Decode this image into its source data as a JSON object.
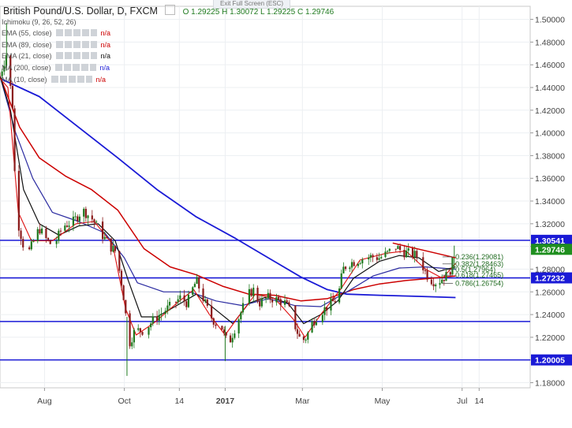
{
  "header": {
    "title": "British Pound/U.S. Dollar, D, FXCM",
    "o_label": "O",
    "o": "1.29225",
    "h_label": "H",
    "h": "1.30072",
    "l_label": "L",
    "l": "1.29225",
    "c_label": "C",
    "c": "1.29746",
    "fullscreen_label": "Exit Full Screen (ESC)"
  },
  "indicators": [
    {
      "name": "Ichimoku (9, 26, 52, 26)",
      "value": "",
      "color": "#999999"
    },
    {
      "name": "EMA (55, close)",
      "value": "n/a",
      "color": "#cc0000"
    },
    {
      "name": "EMA (89, close)",
      "value": "n/a",
      "color": "#cc0000"
    },
    {
      "name": "EMA (21, close)",
      "value": "n/a",
      "color": "#111111"
    },
    {
      "name": "MA (200, close)",
      "value": "n/a",
      "color": "#1a1ad6"
    },
    {
      "name": "MA (10, close)",
      "value": "n/a",
      "color": "#cc0000"
    }
  ],
  "chart_data": {
    "type": "candlestick",
    "yticks": [
      "1.50000",
      "1.48000",
      "1.46000",
      "1.44000",
      "1.42000",
      "1.40000",
      "1.38000",
      "1.36000",
      "1.34000",
      "1.32000",
      "1.30000",
      "1.28000",
      "1.26000",
      "1.24000",
      "1.22000",
      "1.20000",
      "1.18000"
    ],
    "ylim": [
      1.1755,
      1.5115
    ],
    "xticks": [
      {
        "label": "Aug",
        "day": 34,
        "bold": false
      },
      {
        "label": "Oct",
        "day": 95,
        "bold": false
      },
      {
        "label": "14",
        "day": 137,
        "bold": false
      },
      {
        "label": "2017",
        "day": 172,
        "bold": true
      },
      {
        "label": "Mar",
        "day": 231,
        "bold": false
      },
      {
        "label": "May",
        "day": 292,
        "bold": false
      },
      {
        "label": "Jul",
        "day": 353,
        "bold": false
      },
      {
        "label": "14",
        "day": 366,
        "bold": false
      }
    ],
    "xrange": [
      0,
      405
    ],
    "horizontal_levels": [
      {
        "value": 1.30541,
        "label": "1.30541",
        "labeled": true
      },
      {
        "value": 1.27232,
        "label": "1.27232",
        "labeled": true
      },
      {
        "value": 1.2339,
        "label": "",
        "labeled": false
      },
      {
        "value": 1.20005,
        "label": "1.20005",
        "labeled": true
      }
    ],
    "last_price": {
      "value": 1.29746,
      "label": "1.29746",
      "color": "#1f8f1f"
    },
    "fib_levels": [
      {
        "label": "0.236(1.29081)",
        "value": 1.29081
      },
      {
        "label": "0.382(1.28463)",
        "value": 1.28463
      },
      {
        "label": "0.5(1.27964)",
        "value": 1.27964
      },
      {
        "label": "0.618(1.27465)",
        "value": 1.27465
      },
      {
        "label": "0.786(1.26754)",
        "value": 1.26754
      }
    ],
    "trendline": {
      "from": {
        "day": 300,
        "price": 1.303
      },
      "to": {
        "day": 348,
        "price": 1.29
      },
      "color": "#cc0000"
    },
    "key_points": [
      [
        0,
        1.45
      ],
      [
        5,
        1.47
      ],
      [
        8,
        1.44
      ],
      [
        10,
        1.42
      ],
      [
        12,
        1.33
      ],
      [
        16,
        1.31
      ],
      [
        20,
        1.29
      ],
      [
        24,
        1.3
      ],
      [
        30,
        1.316
      ],
      [
        36,
        1.305
      ],
      [
        41,
        1.3
      ],
      [
        48,
        1.318
      ],
      [
        56,
        1.322
      ],
      [
        63,
        1.332
      ],
      [
        70,
        1.325
      ],
      [
        77,
        1.312
      ],
      [
        84,
        1.3
      ],
      [
        88,
        1.296
      ],
      [
        91,
        1.28
      ],
      [
        94,
        1.26
      ],
      [
        97,
        1.23
      ],
      [
        99,
        1.215
      ],
      [
        103,
        1.226
      ],
      [
        110,
        1.226
      ],
      [
        117,
        1.235
      ],
      [
        124,
        1.242
      ],
      [
        131,
        1.248
      ],
      [
        138,
        1.255
      ],
      [
        143,
        1.25
      ],
      [
        147,
        1.262
      ],
      [
        150,
        1.27
      ],
      [
        155,
        1.255
      ],
      [
        160,
        1.24
      ],
      [
        165,
        1.232
      ],
      [
        170,
        1.228
      ],
      [
        172,
        1.218
      ],
      [
        176,
        1.218
      ],
      [
        180,
        1.23
      ],
      [
        185,
        1.245
      ],
      [
        190,
        1.258
      ],
      [
        194,
        1.262
      ],
      [
        198,
        1.25
      ],
      [
        205,
        1.255
      ],
      [
        212,
        1.253
      ],
      [
        218,
        1.25
      ],
      [
        222,
        1.242
      ],
      [
        226,
        1.228
      ],
      [
        230,
        1.216
      ],
      [
        234,
        1.22
      ],
      [
        238,
        1.232
      ],
      [
        243,
        1.24
      ],
      [
        248,
        1.245
      ],
      [
        253,
        1.25
      ],
      [
        258,
        1.254
      ],
      [
        262,
        1.28
      ],
      [
        266,
        1.285
      ],
      [
        272,
        1.287
      ],
      [
        278,
        1.29
      ],
      [
        284,
        1.291
      ],
      [
        290,
        1.29
      ],
      [
        296,
        1.294
      ],
      [
        302,
        1.3
      ],
      [
        308,
        1.295
      ],
      [
        313,
        1.294
      ],
      [
        318,
        1.292
      ],
      [
        322,
        1.285
      ],
      [
        326,
        1.275
      ],
      [
        330,
        1.27
      ],
      [
        334,
        1.268
      ],
      [
        338,
        1.272
      ],
      [
        342,
        1.275
      ],
      [
        345,
        1.282
      ],
      [
        347,
        1.297
      ]
    ],
    "moving_averages": [
      {
        "name": "MA (200, close)",
        "color": "#1a1ad6",
        "width": 1.8,
        "points": [
          [
            0,
            1.448
          ],
          [
            30,
            1.432
          ],
          [
            60,
            1.405
          ],
          [
            90,
            1.378
          ],
          [
            120,
            1.35
          ],
          [
            150,
            1.326
          ],
          [
            180,
            1.307
          ],
          [
            205,
            1.29
          ],
          [
            230,
            1.273
          ],
          [
            250,
            1.262
          ],
          [
            265,
            1.258
          ],
          [
            290,
            1.257
          ],
          [
            320,
            1.256
          ],
          [
            348,
            1.255
          ]
        ]
      },
      {
        "name": "EMA (89, close)",
        "color": "#cc0000",
        "width": 1.5,
        "points": [
          [
            0,
            1.45
          ],
          [
            15,
            1.405
          ],
          [
            30,
            1.378
          ],
          [
            50,
            1.362
          ],
          [
            70,
            1.35
          ],
          [
            90,
            1.332
          ],
          [
            110,
            1.298
          ],
          [
            130,
            1.282
          ],
          [
            150,
            1.275
          ],
          [
            170,
            1.265
          ],
          [
            190,
            1.258
          ],
          [
            210,
            1.257
          ],
          [
            230,
            1.252
          ],
          [
            250,
            1.254
          ],
          [
            270,
            1.262
          ],
          [
            290,
            1.267
          ],
          [
            310,
            1.27
          ],
          [
            330,
            1.272
          ],
          [
            348,
            1.274
          ]
        ]
      },
      {
        "name": "EMA (55, close)",
        "color": "#2a2aa0",
        "width": 1.2,
        "points": [
          [
            0,
            1.45
          ],
          [
            12,
            1.4
          ],
          [
            25,
            1.36
          ],
          [
            40,
            1.33
          ],
          [
            60,
            1.322
          ],
          [
            80,
            1.312
          ],
          [
            95,
            1.29
          ],
          [
            105,
            1.268
          ],
          [
            125,
            1.26
          ],
          [
            145,
            1.26
          ],
          [
            165,
            1.252
          ],
          [
            185,
            1.248
          ],
          [
            205,
            1.254
          ],
          [
            225,
            1.248
          ],
          [
            245,
            1.247
          ],
          [
            265,
            1.26
          ],
          [
            285,
            1.274
          ],
          [
            305,
            1.281
          ],
          [
            325,
            1.282
          ],
          [
            348,
            1.28
          ]
        ]
      },
      {
        "name": "EMA (21, close)",
        "color": "#111111",
        "width": 1.2,
        "points": [
          [
            0,
            1.45
          ],
          [
            8,
            1.42
          ],
          [
            18,
            1.35
          ],
          [
            30,
            1.32
          ],
          [
            45,
            1.31
          ],
          [
            60,
            1.318
          ],
          [
            75,
            1.32
          ],
          [
            88,
            1.305
          ],
          [
            98,
            1.27
          ],
          [
            108,
            1.238
          ],
          [
            120,
            1.238
          ],
          [
            135,
            1.248
          ],
          [
            150,
            1.258
          ],
          [
            165,
            1.244
          ],
          [
            178,
            1.232
          ],
          [
            190,
            1.25
          ],
          [
            205,
            1.256
          ],
          [
            220,
            1.25
          ],
          [
            232,
            1.232
          ],
          [
            245,
            1.24
          ],
          [
            258,
            1.252
          ],
          [
            270,
            1.272
          ],
          [
            290,
            1.287
          ],
          [
            305,
            1.292
          ],
          [
            320,
            1.29
          ],
          [
            335,
            1.278
          ],
          [
            348,
            1.282
          ]
        ]
      },
      {
        "name": "MA (10, close)",
        "color": "#dd1111",
        "width": 1.1,
        "points": [
          [
            0,
            1.448
          ],
          [
            6,
            1.44
          ],
          [
            14,
            1.33
          ],
          [
            24,
            1.305
          ],
          [
            40,
            1.305
          ],
          [
            58,
            1.32
          ],
          [
            72,
            1.322
          ],
          [
            86,
            1.302
          ],
          [
            96,
            1.245
          ],
          [
            104,
            1.222
          ],
          [
            118,
            1.233
          ],
          [
            135,
            1.25
          ],
          [
            148,
            1.262
          ],
          [
            160,
            1.24
          ],
          [
            172,
            1.222
          ],
          [
            182,
            1.238
          ],
          [
            195,
            1.258
          ],
          [
            210,
            1.254
          ],
          [
            224,
            1.236
          ],
          [
            233,
            1.22
          ],
          [
            245,
            1.24
          ],
          [
            260,
            1.262
          ],
          [
            275,
            1.288
          ],
          [
            295,
            1.294
          ],
          [
            310,
            1.296
          ],
          [
            325,
            1.28
          ],
          [
            338,
            1.272
          ],
          [
            348,
            1.285
          ]
        ]
      }
    ]
  }
}
